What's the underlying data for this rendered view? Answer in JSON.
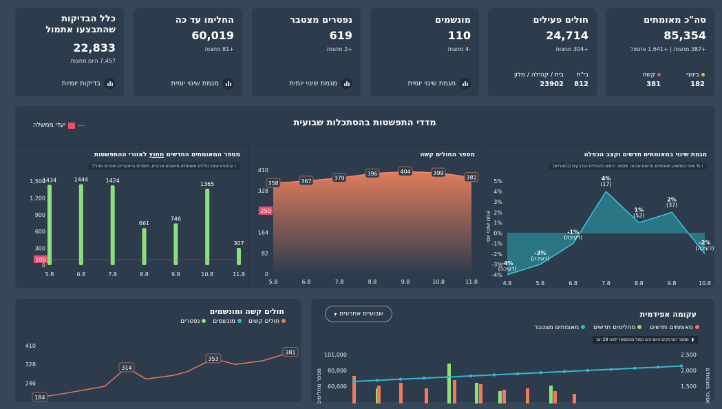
{
  "kpis": [
    {
      "title": "סה\"כ מאומתים",
      "value": "85,354",
      "sub": "+387 מחצות | +1,641 אתמול",
      "sub_items": [
        {
          "label": "בינוני",
          "value": "182",
          "color": "#f5b942"
        },
        {
          "label": "קשה",
          "value": "381",
          "color": "#e84f6f"
        }
      ]
    },
    {
      "title": "חולים פעילים",
      "value": "24,714",
      "sub": "+304 מחצות",
      "sub_items": [
        {
          "label": "בי\"ח",
          "value": "812"
        },
        {
          "label": "בית / קהילה / מלון",
          "value": "23902"
        }
      ]
    },
    {
      "title": "מונשמים",
      "value": "110",
      "sub": "-4 מחצות",
      "btn": "מגמת שינוי יומית"
    },
    {
      "title": "נפטרים מצטבר",
      "value": "619",
      "sub": "+2 מחצות",
      "btn": "מגמת שינוי יומית"
    },
    {
      "title": "החלימו עד כה",
      "value": "60,019",
      "sub": "+81 מחצות",
      "btn": "מגמת שינוי יומית"
    },
    {
      "title": "כלל הבדיקות שהתבצעו אתמול",
      "value": "22,833",
      "sub": "7,457 היום מחצות",
      "btn": "בדיקות יומיות"
    }
  ],
  "section": {
    "title": "מדדי התפשטות בהסתכלות שבועית",
    "legend": "יעדי ממשלה"
  },
  "panel1": {
    "title": "מגמת שינוי במאומתים חדשים וקצב הכפלה",
    "info": "% שינוי בממוצע מאומתים חדשים שבועי, ומספר הימים להכפלת הנדבקים (בסוגריים)",
    "ylabel": "אחוז שינוי יומי",
    "chart_data": {
      "type": "area",
      "x": [
        "4.8",
        "5.8",
        "6.8",
        "7.8",
        "8.8",
        "9.8",
        "10.8"
      ],
      "values": [
        -4,
        -3,
        -1,
        4,
        1,
        2,
        -2
      ],
      "point_labels": [
        "-4%",
        "-3%",
        "-1%",
        "4%",
        "1%",
        "2%",
        "-2%"
      ],
      "doubling": [
        "(דעיכה)",
        "(דעיכה)",
        "(דעיכה)",
        "(17)",
        "(52)",
        "(37)",
        "(דעיכה)"
      ],
      "yticks": [
        "5%",
        "4%",
        "3%",
        "2%",
        "1%",
        "0%",
        "-1%",
        "-2%",
        "-3%",
        "-4%"
      ],
      "ylim": [
        -4,
        5
      ]
    }
  },
  "panel2": {
    "title": "מספר החולים קשה",
    "chart_data": {
      "type": "area",
      "x": [
        "5.8",
        "6.8",
        "7.8",
        "8.8",
        "9.8",
        "10.8",
        "11.8"
      ],
      "values": [
        358,
        367,
        379,
        396,
        404,
        399,
        381
      ],
      "yticks": [
        "410",
        "328",
        "246",
        "164",
        "82",
        "0"
      ],
      "ylim": [
        0,
        410
      ],
      "target": 250
    }
  },
  "panel3": {
    "title_pre": "מספר המאומתים החדשים ",
    "title_u": "מחוץ",
    "title_post": " לאזורי ההתפשטות",
    "info": "הנתונים אינם כוללים מאומתים מישובים ארעיים, מוסדות גריאטריים וחוזרים מחו\"ל",
    "chart_data": {
      "type": "bar",
      "x": [
        "5.8",
        "6.8",
        "7.8",
        "8.8",
        "9.8",
        "10.8",
        "11.8"
      ],
      "values": [
        1434,
        1444,
        1424,
        661,
        746,
        1365,
        307
      ],
      "yticks": [
        "1,500",
        "1,200",
        "900",
        "600",
        "300",
        "0"
      ],
      "ylim": [
        0,
        1500
      ],
      "target": 100
    }
  },
  "bottom_left": {
    "title": "חולים קשה ומונשמים",
    "legend": [
      {
        "label": "חולים קשים",
        "color": "#f07a5a"
      },
      {
        "label": "מונשמים",
        "color": "#34b8cf"
      },
      {
        "label": "נפטרים",
        "color": "#8fe07a"
      }
    ],
    "chart_data": {
      "type": "line",
      "values": [
        184,
        314,
        353,
        381
      ],
      "yticks": [
        "410",
        "328",
        "246"
      ]
    }
  },
  "bottom_right": {
    "title": "עקומה אפידמית",
    "dropdown": "שבועיים אחרונים",
    "legend": [
      {
        "label": "מאומתים חדשים",
        "color": "#f07a5a"
      },
      {
        "label": "מחלימים חדשים",
        "color": "#8fe07a"
      },
      {
        "label": "מאומתים מצטבר",
        "color": "#34b8cf"
      }
    ],
    "note": "מספר הנדבקים היום הינו כפול מהמספר לפני 28 יום",
    "chart_data": {
      "type": "bar",
      "yticks_left": [
        "101,000",
        "80,800",
        "60,600"
      ],
      "yticks_right": [
        "2,500",
        "2,000",
        "1,500"
      ],
      "ylabel_left": "מספר מחלימים",
      "ylabel_right": "מספר מאומתים"
    }
  }
}
